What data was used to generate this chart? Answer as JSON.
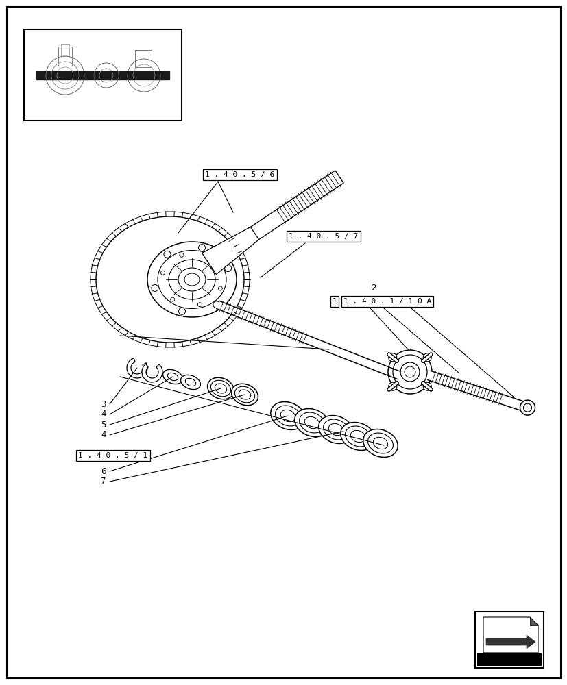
{
  "bg_color": "#ffffff",
  "line_color": "#000000",
  "fig_width": 8.28,
  "fig_height": 10.0,
  "dpi": 100,
  "labels": {
    "ref1": "1 . 4 0 . 5 / 6",
    "ref2": "1 . 4 0 . 5 / 7",
    "ref3_box": "1 . 4 0 . 1 / 1 0 A",
    "ref4": "1 . 4 0 . 5 / 1"
  }
}
